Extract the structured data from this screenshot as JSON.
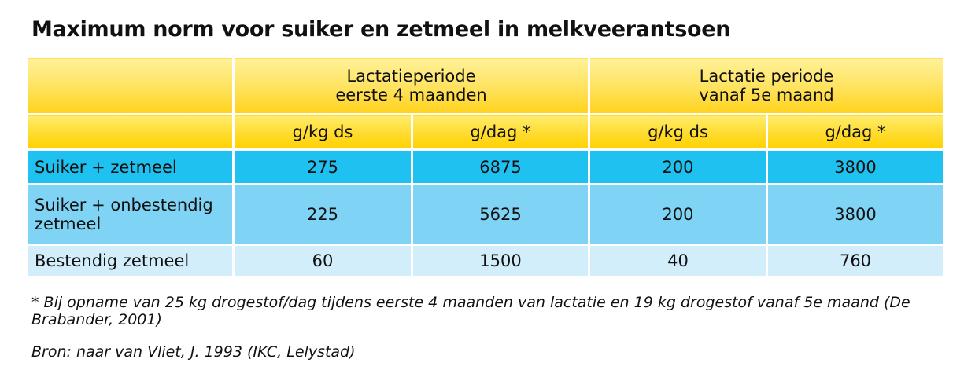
{
  "title": "Maximum norm voor suiker en zetmeel in melkveerantsoen",
  "table": {
    "group_headers": [
      {
        "line1": "Lactatieperiode",
        "line2": "eerste 4 maanden"
      },
      {
        "line1": "Lactatie periode",
        "line2": "vanaf 5e maand"
      }
    ],
    "unit_headers": [
      "g/kg ds",
      "g/dag *",
      "g/kg ds",
      "g/dag *"
    ],
    "rows": [
      {
        "label": "Suiker + zetmeel",
        "values": [
          "275",
          "6875",
          "200",
          "3800"
        ]
      },
      {
        "label_line1": "Suiker + onbestendig",
        "label_line2": "zetmeel",
        "values": [
          "225",
          "5625",
          "200",
          "3800"
        ]
      },
      {
        "label": "Bestendig zetmeel",
        "values": [
          "60",
          "1500",
          "40",
          "760"
        ]
      }
    ]
  },
  "footnote": "* Bij opname van 25 kg drogestof/dag tijdens eerste 4 maanden van lactatie en 19 kg drogestof vanaf 5e maand (De Brabander, 2001)",
  "source": "Bron: naar van Vliet, J. 1993 (IKC, Lelystad)",
  "colors": {
    "header_yellow_light": "#fff19a",
    "header_yellow": "#ffd21c",
    "row1_blue": "#1fc1f0",
    "row2_blue": "#7fd4f5",
    "row3_blue": "#d3eefb"
  }
}
